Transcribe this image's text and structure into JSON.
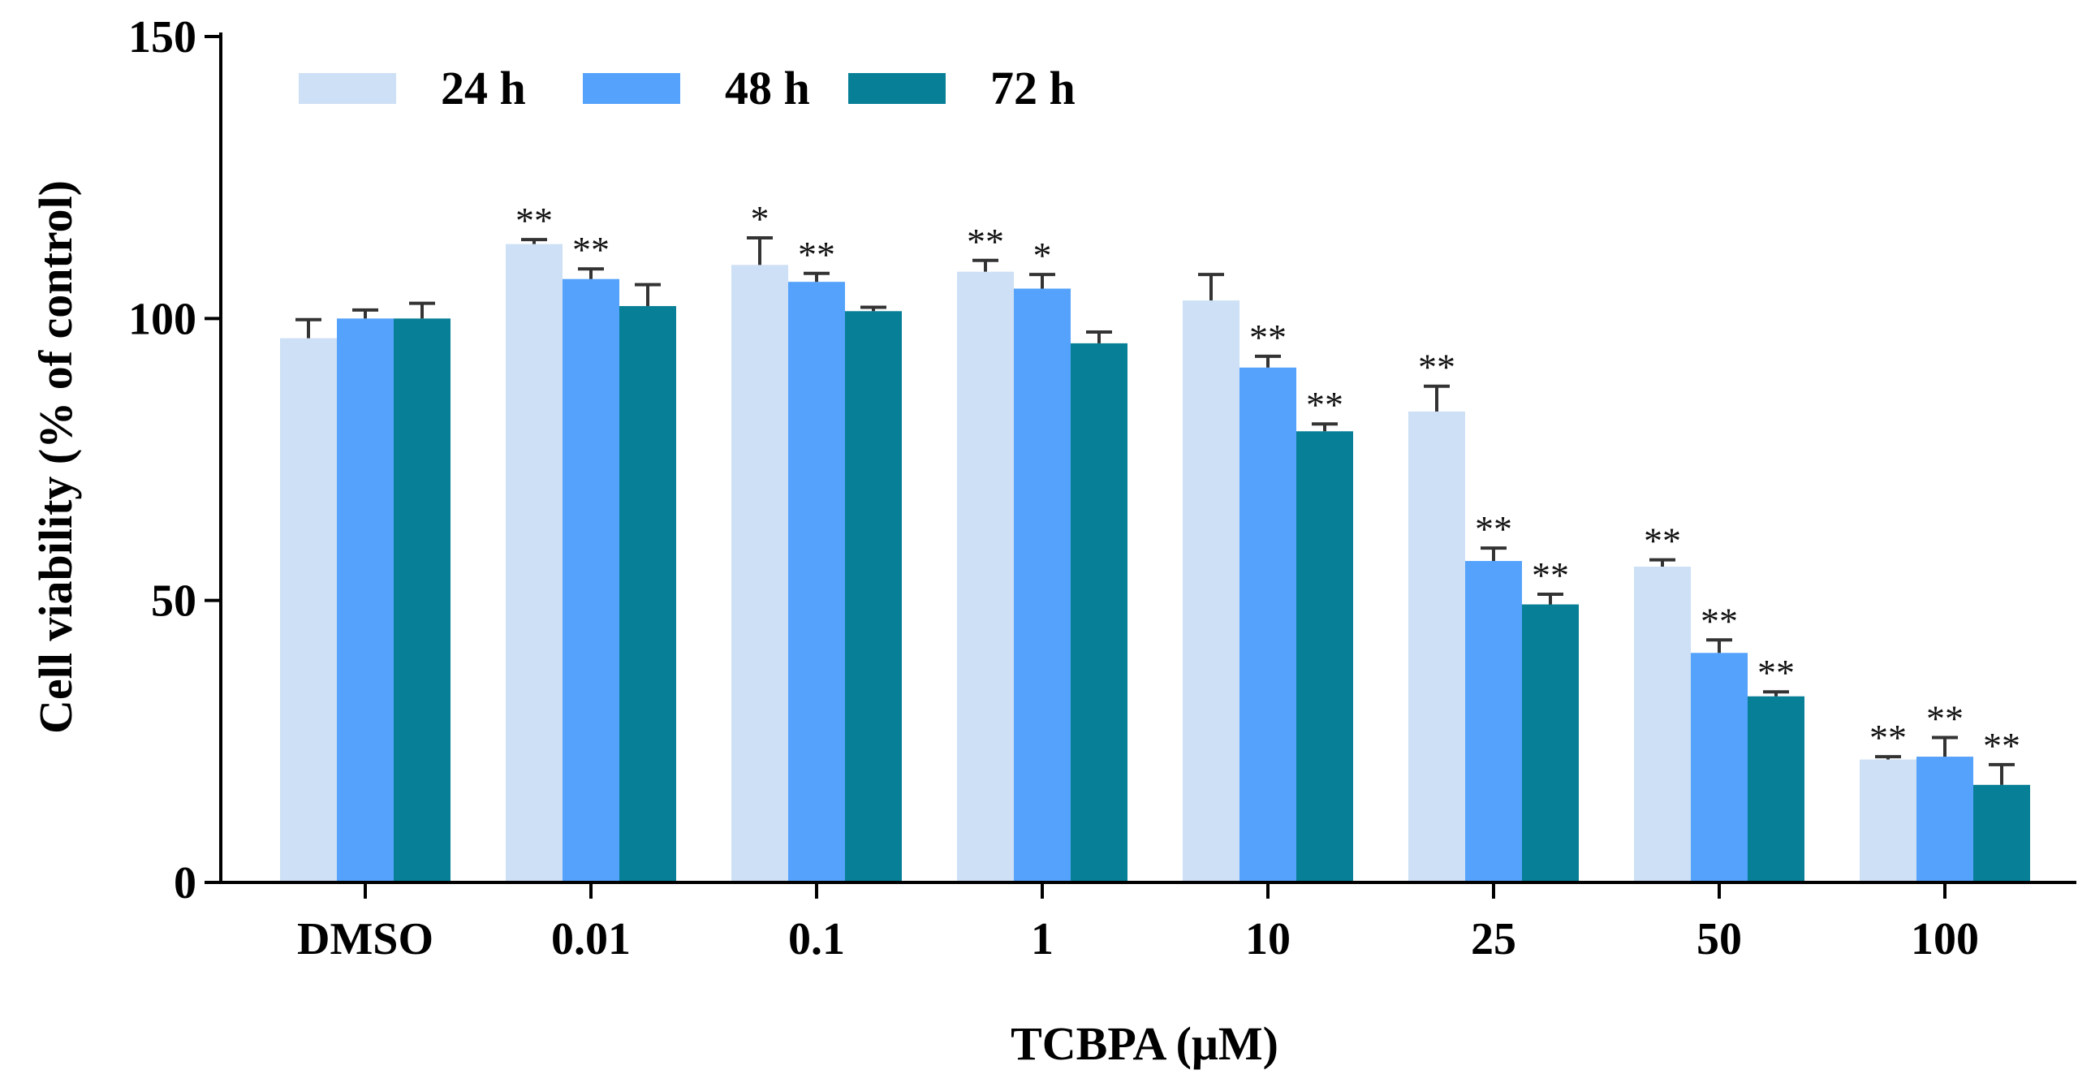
{
  "chart_data": {
    "type": "bar",
    "title": "",
    "xlabel": "TCBPA (μM)",
    "ylabel": "Cell viability (% of control)",
    "ylim": [
      0,
      150
    ],
    "yticks": [
      0,
      50,
      100,
      150
    ],
    "legend_position": "top-left",
    "categories": [
      "DMSO",
      "0.01",
      "0.1",
      "1",
      "10",
      "25",
      "50",
      "100"
    ],
    "series": [
      {
        "name": "24 h",
        "color": "#cde0f5",
        "values": [
          96.5,
          113.2,
          109.5,
          108.3,
          103.2,
          83.5,
          56.0,
          21.8
        ],
        "errors": [
          3.3,
          0.8,
          4.8,
          2.0,
          4.6,
          4.5,
          1.2,
          0.5
        ],
        "significance": [
          "",
          "**",
          "*",
          "**",
          "",
          "**",
          "**",
          "**"
        ]
      },
      {
        "name": "48 h",
        "color": "#54a2fb",
        "values": [
          100.0,
          107.0,
          106.5,
          105.3,
          91.3,
          57.0,
          40.7,
          22.3
        ],
        "errors": [
          1.5,
          1.8,
          1.5,
          2.5,
          2.0,
          2.3,
          2.3,
          3.4
        ],
        "significance": [
          "",
          "**",
          "**",
          "*",
          "**",
          "**",
          "**",
          "**"
        ]
      },
      {
        "name": "72 h",
        "color": "#077f96",
        "values": [
          100.0,
          102.2,
          101.3,
          95.6,
          80.0,
          49.3,
          33.0,
          17.3
        ],
        "errors": [
          2.7,
          3.8,
          0.7,
          2.0,
          1.3,
          1.8,
          0.8,
          3.6
        ],
        "significance": [
          "",
          "",
          "",
          "",
          "**",
          "**",
          "**",
          "**"
        ]
      }
    ]
  }
}
